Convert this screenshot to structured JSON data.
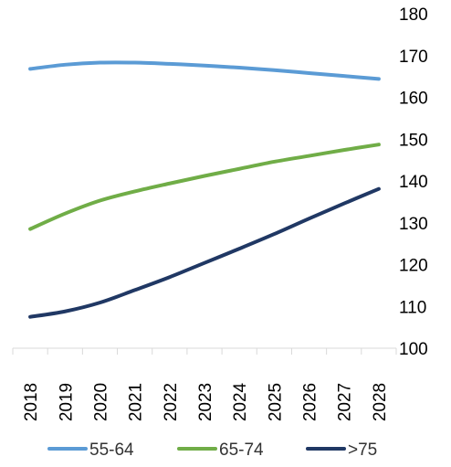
{
  "chart_data": {
    "type": "line",
    "title": "",
    "xlabel": "",
    "ylabel": "",
    "x": [
      "2018",
      "2019",
      "2020",
      "2021",
      "2022",
      "2023",
      "2024",
      "2025",
      "2026",
      "2027",
      "2028"
    ],
    "ylim": [
      100,
      180
    ],
    "yticks": [
      100,
      110,
      120,
      130,
      140,
      150,
      160,
      170,
      180
    ],
    "y_axis_side": "right",
    "grid": false,
    "legend_position": "bottom",
    "series": [
      {
        "name": "55-64",
        "color": "#5b9bd5",
        "values": [
          166.8,
          167.8,
          168.3,
          168.3,
          168.0,
          167.6,
          167.1,
          166.5,
          165.8,
          165.1,
          164.4
        ]
      },
      {
        "name": "65-74",
        "color": "#70ad47",
        "values": [
          128.5,
          132.2,
          135.3,
          137.5,
          139.4,
          141.2,
          142.9,
          144.6,
          146.0,
          147.4,
          148.7
        ]
      },
      {
        "name": ">75",
        "color": "#203864",
        "values": [
          107.5,
          108.8,
          110.9,
          113.9,
          117.0,
          120.4,
          123.8,
          127.3,
          131.0,
          134.6,
          138.1
        ]
      }
    ]
  }
}
